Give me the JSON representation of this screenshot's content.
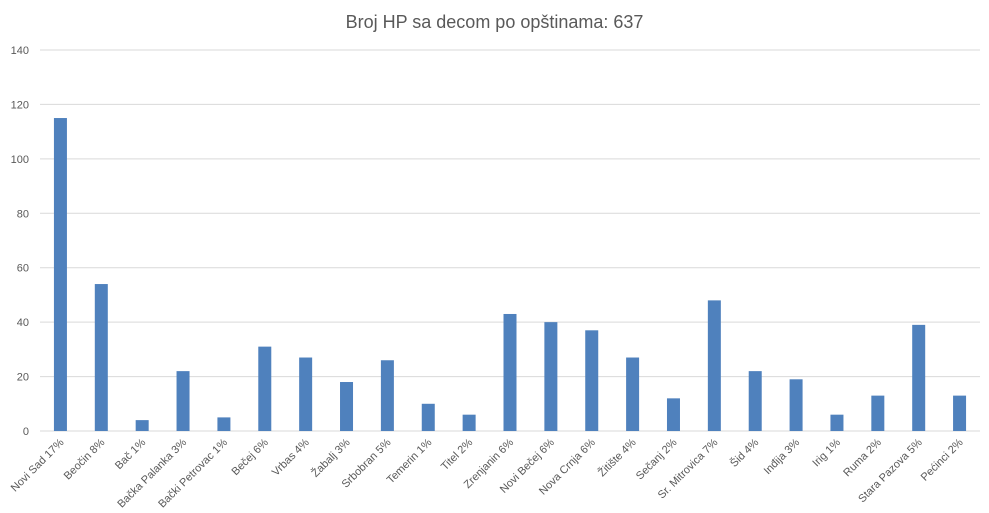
{
  "chart_data": {
    "type": "bar",
    "title": "Broj HP sa decom po opštinama: 637",
    "xlabel": "",
    "ylabel": "",
    "ylim": [
      0,
      140
    ],
    "yticks": [
      0,
      20,
      40,
      60,
      80,
      100,
      120,
      140
    ],
    "grid": true,
    "legend": "none",
    "bar_color": "#4f81bd",
    "categories": [
      "Novi Sad 17%",
      "Beočin 8%",
      "Bač 1%",
      "Bačka Palanka 3%",
      "Bački Petrovac 1%",
      "Bečej 6%",
      "Vrbas 4%",
      "Žabalj 3%",
      "Srbobran 5%",
      "Temerin 1%",
      "Titel 2%",
      "Zrenjanin 6%",
      "Novi Bečej 6%",
      "Nova Crnja 6%",
      "Žitište 4%",
      "Sečanj 2%",
      "Sr. Mitrovica 7%",
      "Šid 4%",
      "Inđija 3%",
      "Irig 1%",
      "Ruma 2%",
      "Stara Pazova 5%",
      "Pećinci 2%"
    ],
    "values": [
      115,
      54,
      4,
      22,
      5,
      31,
      27,
      18,
      26,
      10,
      6,
      43,
      40,
      37,
      27,
      12,
      48,
      22,
      19,
      6,
      13,
      39,
      13
    ]
  }
}
